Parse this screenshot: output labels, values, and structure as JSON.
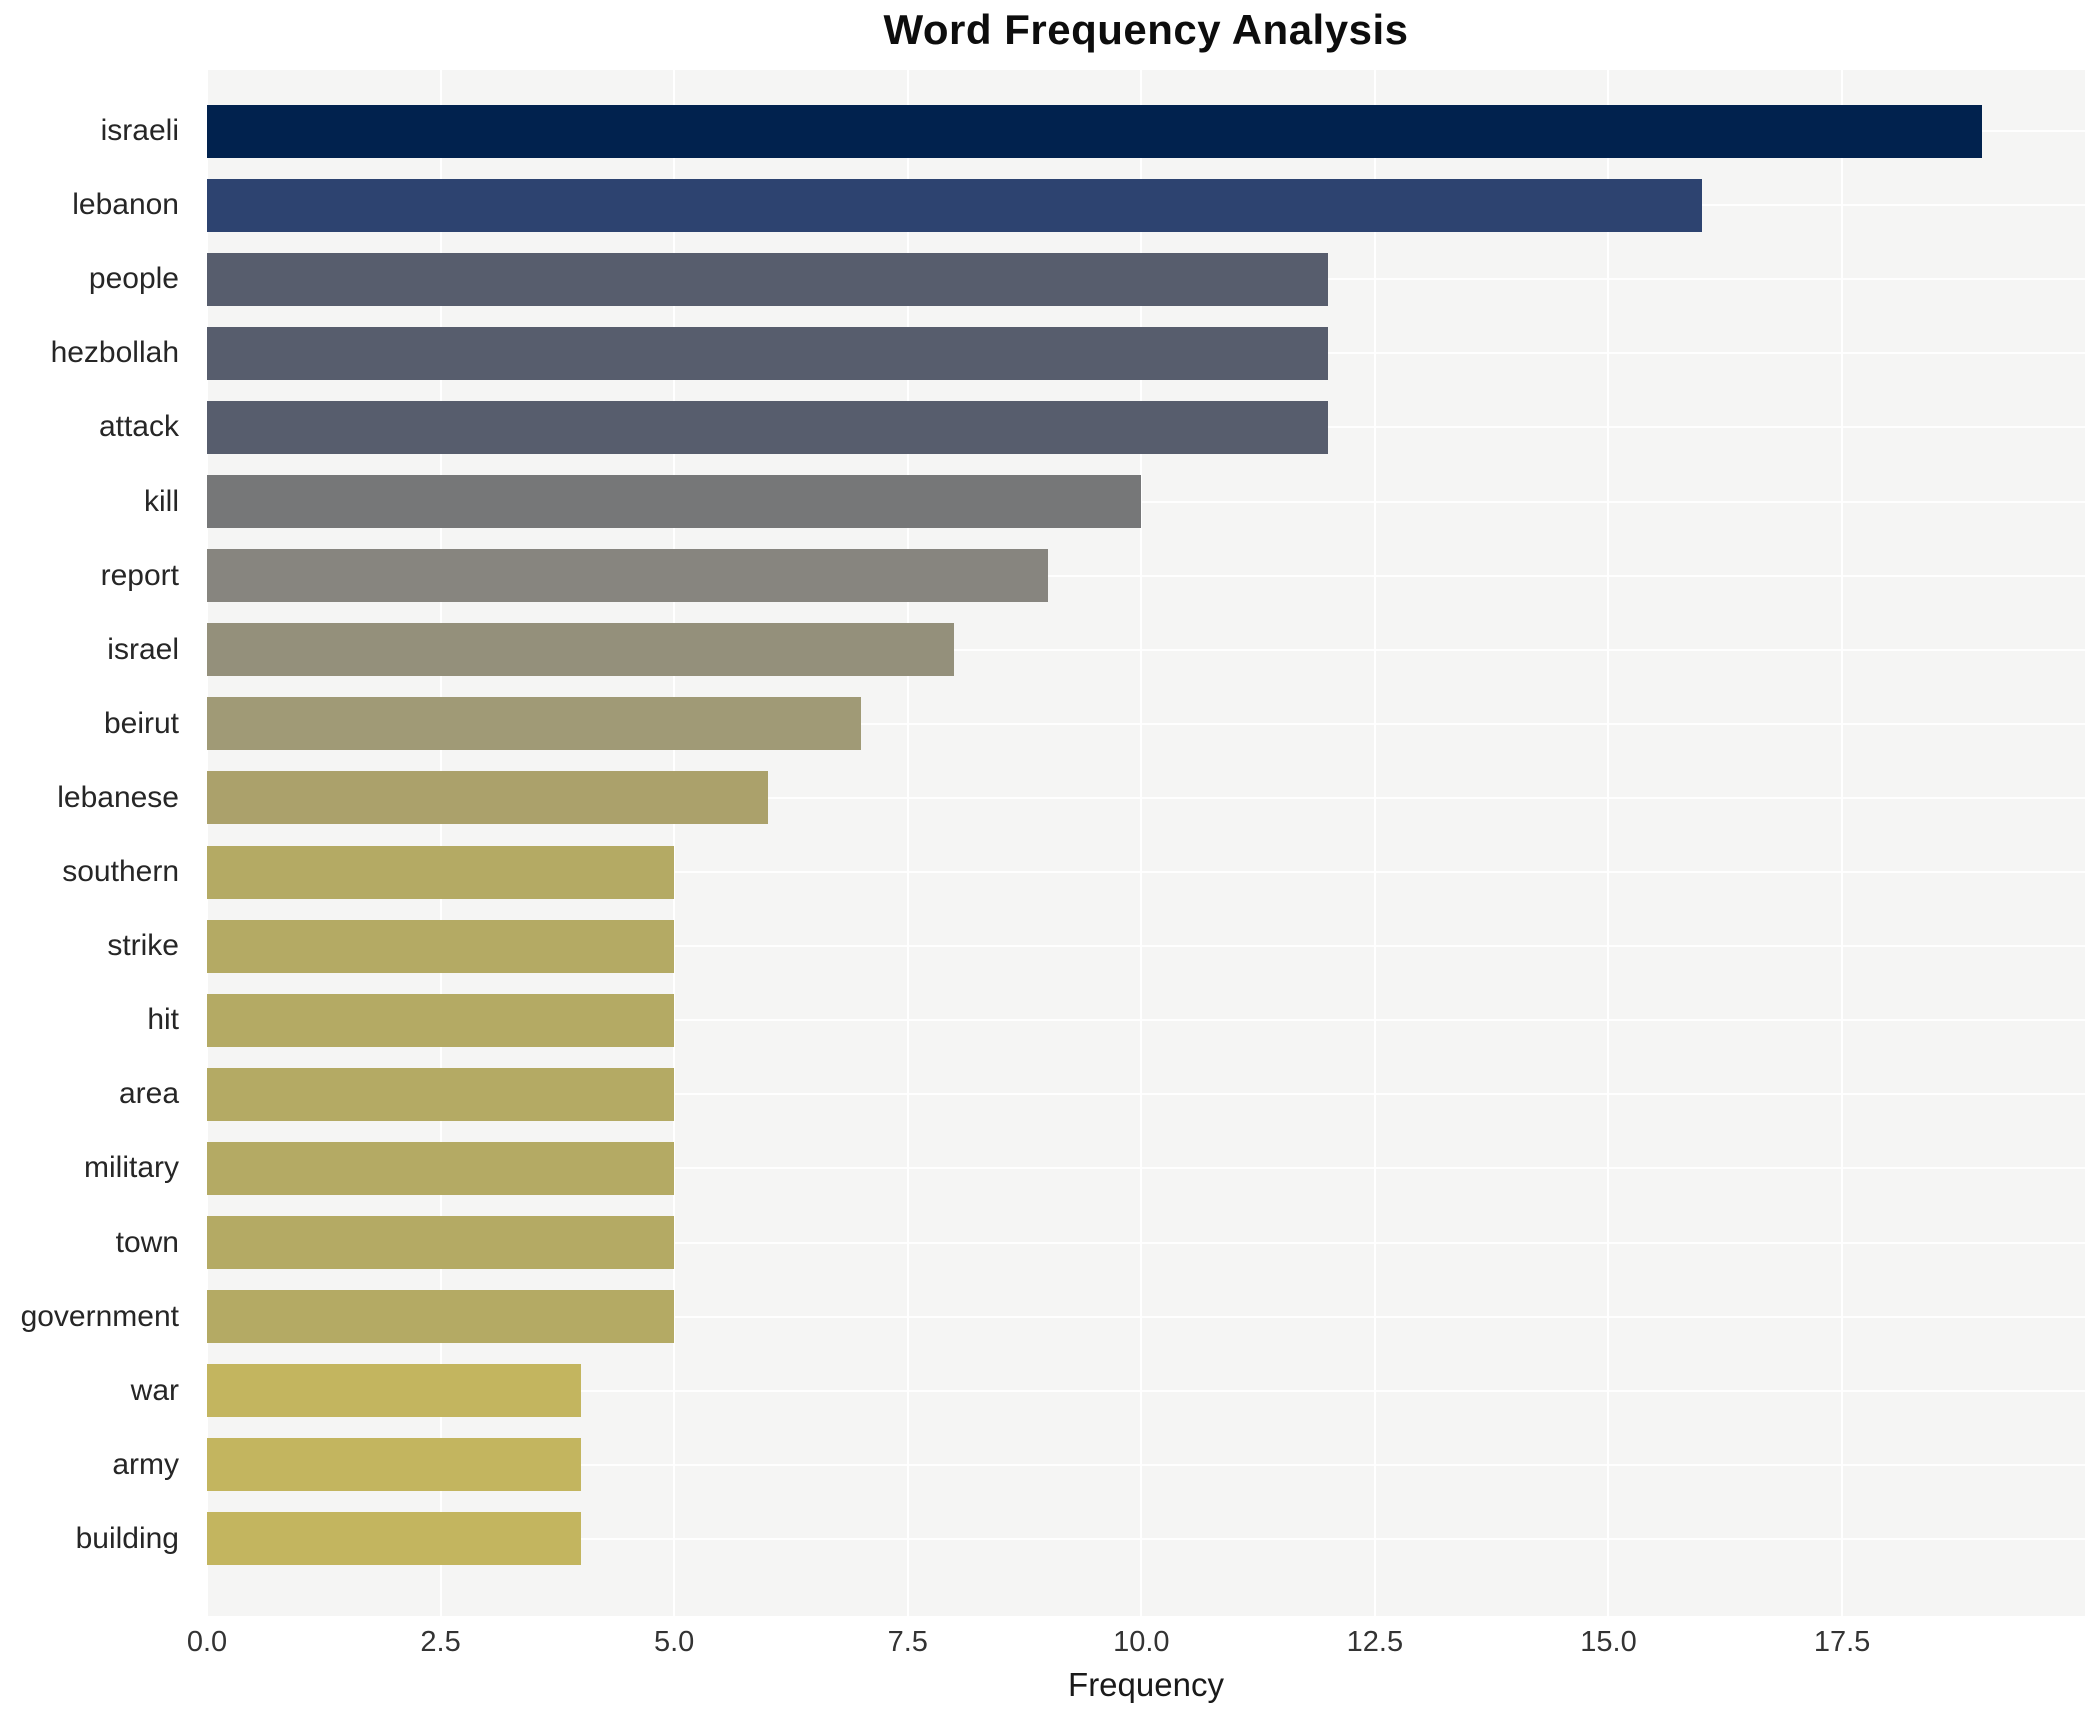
{
  "chart_data": {
    "type": "bar",
    "orientation": "horizontal",
    "title": "Word Frequency Analysis",
    "xlabel": "Frequency",
    "ylabel": "",
    "categories": [
      "israeli",
      "lebanon",
      "people",
      "hezbollah",
      "attack",
      "kill",
      "report",
      "israel",
      "beirut",
      "lebanese",
      "southern",
      "strike",
      "hit",
      "area",
      "military",
      "town",
      "government",
      "war",
      "army",
      "building"
    ],
    "values": [
      19,
      16,
      12,
      12,
      12,
      10,
      9,
      8,
      7,
      6,
      5,
      5,
      5,
      5,
      5,
      5,
      5,
      4,
      4,
      4
    ],
    "bar_colors": [
      "#01224e",
      "#2d4370",
      "#575d6d",
      "#575d6d",
      "#575d6d",
      "#767778",
      "#87857f",
      "#94907b",
      "#a09a76",
      "#aba16b",
      "#b4aa64",
      "#b4aa64",
      "#b4aa64",
      "#b4aa64",
      "#b4aa64",
      "#b4aa64",
      "#b4aa64",
      "#c3b55f",
      "#c3b55f",
      "#c3b55f"
    ],
    "xlim": [
      0,
      20.1
    ],
    "xticks": [
      0.0,
      2.5,
      5.0,
      7.5,
      10.0,
      12.5,
      15.0,
      17.5
    ],
    "xtick_labels": [
      "0.0",
      "2.5",
      "5.0",
      "7.5",
      "10.0",
      "12.5",
      "15.0",
      "17.5"
    ],
    "grid": true,
    "legend": false,
    "plot_background": "#f5f5f4",
    "grid_color": "#ffffff",
    "figure_background": "#ffffff",
    "title_color": "#0d0d0d",
    "tick_label_color": "#333333",
    "category_label_color": "#262626"
  }
}
